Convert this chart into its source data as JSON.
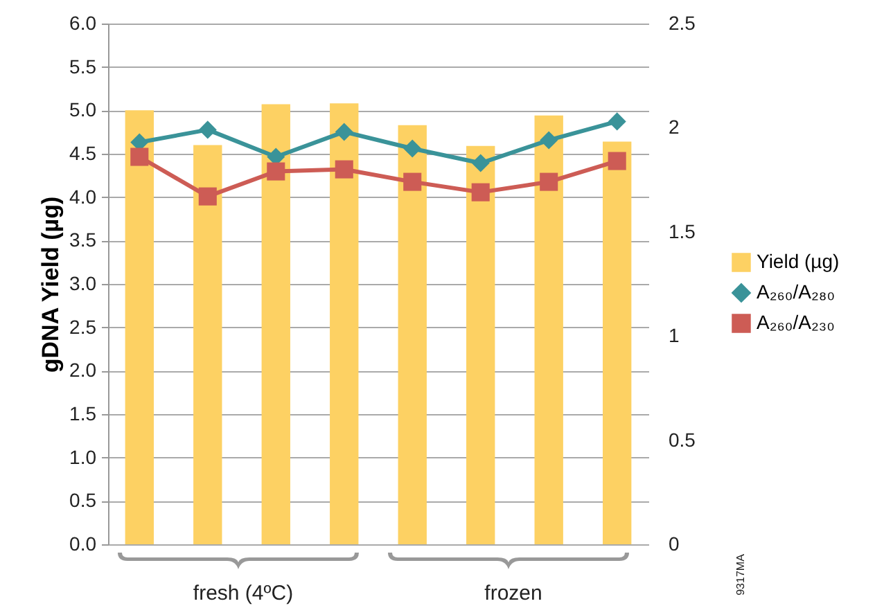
{
  "chart_data": {
    "type": "bar",
    "ylabel": "gDNA Yield (µg)",
    "categories": [
      null,
      null,
      null,
      null,
      null,
      null,
      null,
      null
    ],
    "series": [
      {
        "name": "Yield (µg)",
        "color": "#fdd163",
        "values": [
          5.0,
          4.6,
          5.07,
          5.08,
          4.83,
          4.59,
          4.94,
          4.64
        ]
      },
      {
        "name": "A₂₆₀/A₂₈₀",
        "type": "line",
        "axis": "y2",
        "color": "#3a9399",
        "marker": "diamond",
        "values": [
          1.93,
          1.99,
          1.86,
          1.98,
          1.9,
          1.83,
          1.94,
          2.03
        ]
      },
      {
        "name": "A₂₆₀/A₂₃₀",
        "type": "line",
        "axis": "y2",
        "color": "#cd5c55",
        "marker": "square",
        "values": [
          1.86,
          1.67,
          1.79,
          1.8,
          1.74,
          1.69,
          1.74,
          1.84
        ]
      }
    ],
    "ylim": [
      0,
      6
    ],
    "yticks": [
      {
        "value": 0,
        "label": "0.0"
      },
      {
        "value": 0.5,
        "label": "0.5"
      },
      {
        "value": 1,
        "label": "1.0"
      },
      {
        "value": 1.5,
        "label": "1.5"
      },
      {
        "value": 2,
        "label": "2.0"
      },
      {
        "value": 2.5,
        "label": "2.5"
      },
      {
        "value": 3,
        "label": "3.0"
      },
      {
        "value": 3.5,
        "label": "3.5"
      },
      {
        "value": 4,
        "label": "4.0"
      },
      {
        "value": 4.5,
        "label": "4.5"
      },
      {
        "value": 5,
        "label": "5.0"
      },
      {
        "value": 5.5,
        "label": "5.5"
      },
      {
        "value": 6,
        "label": "6.0"
      }
    ],
    "y2lim": [
      0,
      2.5
    ],
    "y2ticks": [
      0,
      0.5,
      1,
      1.5,
      2,
      2.5
    ],
    "grid": "y",
    "legend": "right",
    "annotations": [
      "fresh (4ºC)",
      "frozen",
      "9317MA"
    ]
  }
}
